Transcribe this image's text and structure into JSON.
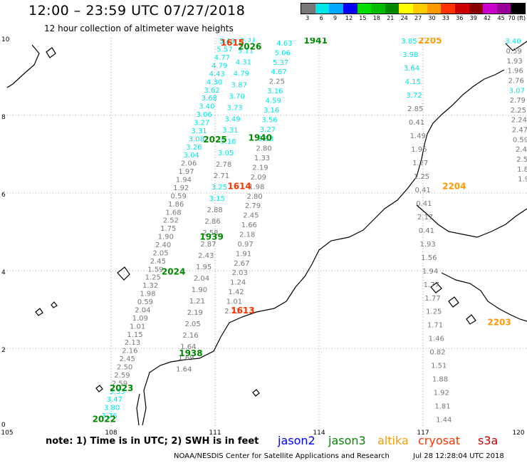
{
  "header": {
    "title": "12:00 – 23:59 UTC 07/27/2018",
    "subtitle": "12 hour collection of altimeter wave heights"
  },
  "legend": {
    "colors": [
      "#777777",
      "#00e5e5",
      "#00aaff",
      "#0000ff",
      "#00dd00",
      "#00bb00",
      "#008800",
      "#ffff00",
      "#ffcc00",
      "#ff9900",
      "#ff3300",
      "#cc0000",
      "#880000",
      "#cc00cc",
      "#990099",
      "#000000"
    ],
    "labels": [
      "3",
      "6",
      "9",
      "12",
      "15",
      "18",
      "21",
      "24",
      "27",
      "30",
      "33",
      "36",
      "39",
      "42",
      "45",
      "70 (ft)"
    ]
  },
  "axes": {
    "y_ticks": [
      "10",
      "8",
      "6",
      "4",
      "2",
      "0"
    ],
    "x_ticks": [
      "105",
      "108",
      "111",
      "114",
      "117",
      "120"
    ]
  },
  "footer": {
    "note": "note:  1) Time is in UTC;  2) SWH is in feet",
    "credit": "NOAA/NESDIS Center for Satellite Applications and Research",
    "timestamp": "Jul 28 12:28:04 UTC 2018"
  },
  "satellites": [
    {
      "name": "jason2",
      "color": "#0000ff"
    },
    {
      "name": "jason3",
      "color": "#008800"
    },
    {
      "name": "altika",
      "color": "#ff9900"
    },
    {
      "name": "cryosat",
      "color": "#ff3300"
    },
    {
      "name": "s3a",
      "color": "#cc0000"
    }
  ],
  "passes": [
    {
      "time": "1615",
      "lon": 111.5,
      "lat": 9.8,
      "color": "#ff3300"
    },
    {
      "time": "2026",
      "lon": 112.0,
      "lat": 9.7,
      "color": "#008800"
    },
    {
      "time": "1941",
      "lon": 113.9,
      "lat": 9.85,
      "color": "#008800"
    },
    {
      "time": "2205",
      "lon": 117.2,
      "lat": 9.85,
      "color": "#ff9900"
    },
    {
      "time": "1940",
      "lon": 112.3,
      "lat": 7.35,
      "color": "#008800"
    },
    {
      "time": "2025",
      "lon": 111.0,
      "lat": 7.3,
      "color": "#008800"
    },
    {
      "time": "1614",
      "lon": 111.7,
      "lat": 6.1,
      "color": "#ff3300"
    },
    {
      "time": "2204",
      "lon": 117.9,
      "lat": 6.1,
      "color": "#ff9900"
    },
    {
      "time": "1939",
      "lon": 110.9,
      "lat": 4.8,
      "color": "#008800"
    },
    {
      "time": "2024",
      "lon": 109.8,
      "lat": 3.9,
      "color": "#008800"
    },
    {
      "time": "1613",
      "lon": 111.8,
      "lat": 2.9,
      "color": "#ff3300"
    },
    {
      "time": "2203",
      "lon": 119.2,
      "lat": 2.6,
      "color": "#ff9900"
    },
    {
      "time": "1938",
      "lon": 110.3,
      "lat": 1.8,
      "color": "#008800"
    },
    {
      "time": "2023",
      "lon": 108.3,
      "lat": 0.9,
      "color": "#008800"
    },
    {
      "time": "2022",
      "lon": 107.8,
      "lat": 0.1,
      "color": "#008800"
    }
  ],
  "tracks": [
    {
      "id": "jason3-ascending-west",
      "start": {
        "lon": 107.95,
        "lat": 0.2
      },
      "end": {
        "lon": 111.35,
        "lat": 9.85
      },
      "values": [
        "3.76",
        "3.80",
        "3.47",
        "3.33",
        "2.59",
        "2.59",
        "2.50",
        "2.45",
        "2.16",
        "2.13",
        "1.15",
        "1.01",
        "1.09",
        "2.04",
        "0.59",
        "1.98",
        "1.32",
        "1.25",
        "1.59",
        "2.45",
        "2.05",
        "2.40",
        "1.90",
        "1.75",
        "2.52",
        "1.68",
        "1.86",
        "0.59",
        "1.92",
        "1.94",
        "1.97",
        "2.06",
        "3.04",
        "3.26",
        "3.08",
        "3.31",
        "3.27",
        "3.06",
        "3.40",
        "3.68",
        "3.62",
        "4.30",
        "4.43",
        "4.79",
        "4.77",
        "5.57",
        "5.49"
      ]
    },
    {
      "id": "cryosat-ascending",
      "start": {
        "lon": 110.1,
        "lat": 1.4
      },
      "end": {
        "lon": 111.95,
        "lat": 9.9
      },
      "values": [
        "1.64",
        "1.69",
        "1.64",
        "2.16",
        "2.05",
        "2.19",
        "1.21",
        "1.90",
        "2.04",
        "1.95",
        "2.43",
        "2.87",
        "2.58",
        "2.86",
        "2.88",
        "3.15",
        "3.25",
        "2.71",
        "2.78",
        "3.05",
        "3.16",
        "3.31",
        "3.49",
        "3.73",
        "3.70",
        "3.87",
        "4.79",
        "4.31",
        "5.11",
        "5.31"
      ]
    },
    {
      "id": "jason3-descending",
      "start": {
        "lon": 111.5,
        "lat": 2.9
      },
      "end": {
        "lon": 113.0,
        "lat": 9.8
      },
      "values": [
        "2.23",
        "1.01",
        "1.42",
        "1.24",
        "2.03",
        "2.67",
        "1.91",
        "0.97",
        "2.18",
        "1.66",
        "2.45",
        "2.79",
        "2.80",
        "1.98",
        "2.09",
        "2.19",
        "1.33",
        "2.80",
        "3.53",
        "3.27",
        "3.56",
        "3.16",
        "4.59",
        "3.16",
        "2.25",
        "4.67",
        "5.37",
        "5.06",
        "4.63"
      ]
    },
    {
      "id": "altika-descending",
      "start": {
        "lon": 117.6,
        "lat": 0.1
      },
      "end": {
        "lon": 116.6,
        "lat": 9.85
      },
      "values": [
        "1.44",
        "1.81",
        "1.92",
        "1.88",
        "1.51",
        "0.82",
        "1.46",
        "1.71",
        "1.25",
        "1.77",
        "1.77",
        "1.94",
        "1.56",
        "1.93",
        "0.41",
        "2.17",
        "0.41",
        "0.41",
        "1.25",
        "1.27",
        "1.95",
        "1.49",
        "0.41",
        "2.85",
        "3.72",
        "4.15",
        "3.64",
        "3.98",
        "3.85"
      ]
    },
    {
      "id": "altika-east-edge",
      "start": {
        "lon": 119.9,
        "lat": 6.3
      },
      "end": {
        "lon": 119.6,
        "lat": 9.85
      },
      "values": [
        "1.9",
        "1.8",
        "2.5",
        "2.4",
        "0.59",
        "2.47",
        "2.24",
        "2.25",
        "2.79",
        "3.07",
        "2.76",
        "1.96",
        "1.93",
        "0.59",
        "3.40"
      ]
    }
  ]
}
